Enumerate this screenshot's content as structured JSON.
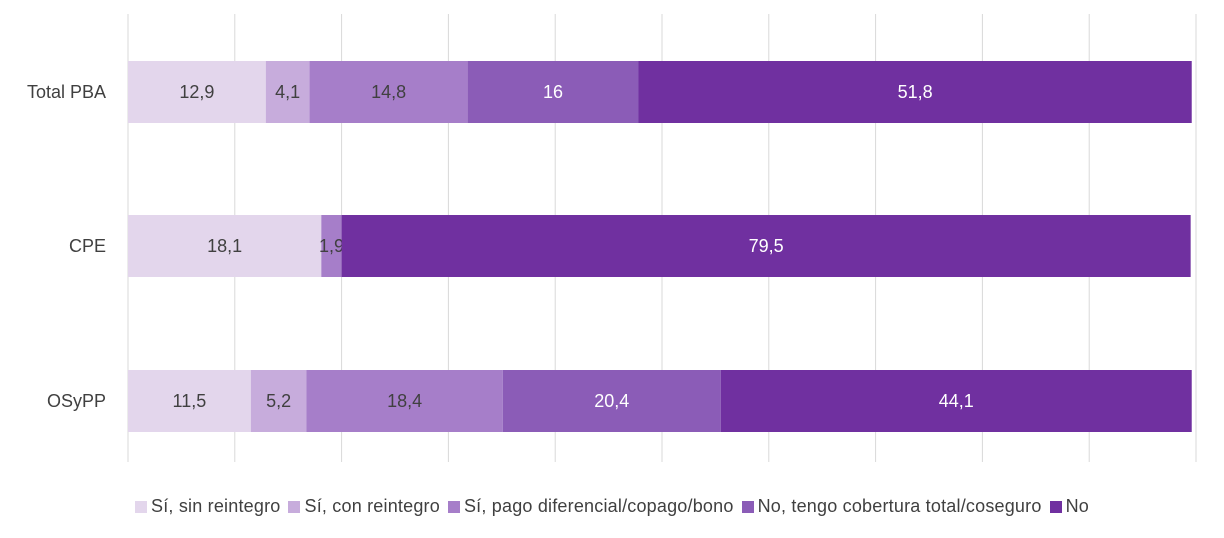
{
  "chart_data": {
    "type": "bar",
    "orientation": "horizontal",
    "stacked": true,
    "categories": [
      "Total PBA",
      "CPE",
      "OSyPP"
    ],
    "xlim": [
      0,
      100
    ],
    "grid": true,
    "legend_position": "bottom",
    "series": [
      {
        "name": "Sí, sin reintegro",
        "values": [
          12.9,
          18.1,
          11.5
        ],
        "labels": [
          "12,9",
          "18,1",
          "11,5"
        ],
        "color": "#e3d6ec",
        "label_color": "#404040"
      },
      {
        "name": "Sí, con reintegro",
        "values": [
          4.1,
          0,
          5.2
        ],
        "labels": [
          "4,1",
          "",
          "5,2"
        ],
        "color": "#c7acdc",
        "label_color": "#404040"
      },
      {
        "name": "Sí, pago diferencial/copago/bono",
        "values": [
          14.8,
          1.9,
          18.4
        ],
        "labels": [
          "14,8",
          "1,9",
          "18,4"
        ],
        "color": "#a67ec9",
        "label_color": "#404040"
      },
      {
        "name": "No, tengo cobertura total/coseguro",
        "values": [
          16,
          0,
          20.4
        ],
        "labels": [
          "16",
          "",
          "20,4"
        ],
        "color": "#8b5cb7",
        "label_color": "#ffffff"
      },
      {
        "name": "No",
        "values": [
          51.8,
          79.5,
          44.1
        ],
        "labels": [
          "51,8",
          "79,5",
          "44,1"
        ],
        "color": "#7030a0",
        "label_color": "#ffffff"
      }
    ]
  }
}
